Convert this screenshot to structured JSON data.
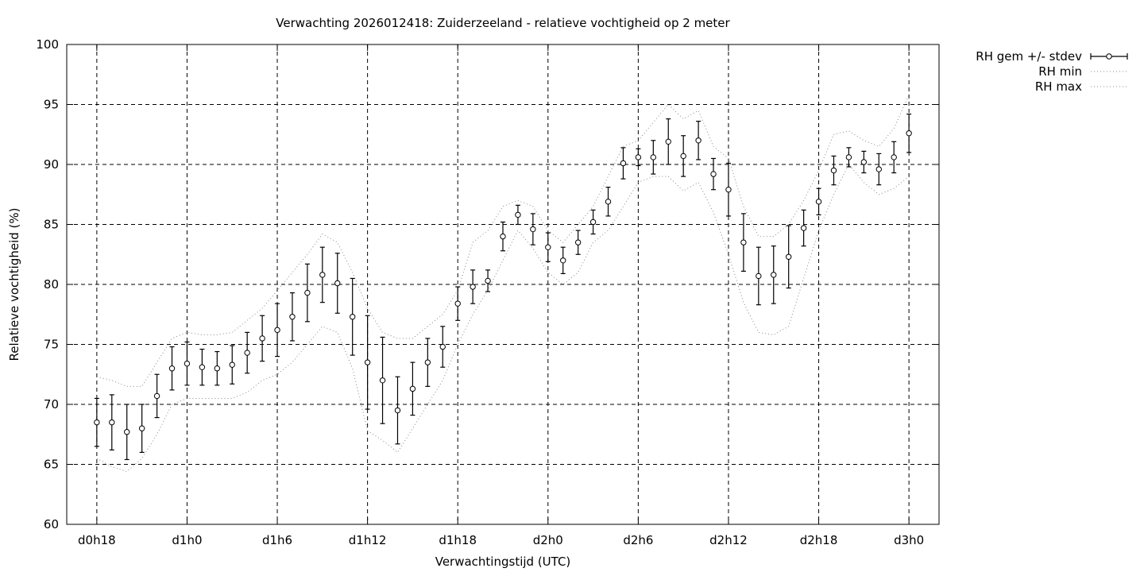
{
  "chart_data": {
    "type": "line",
    "title": "Verwachting 2026012418: Zuiderzeeland - relatieve vochtigheid op 2 meter",
    "xlabel": "Verwachtingstijd (UTC)",
    "ylabel": "Relatieve vochtigheid (%)",
    "ylim": [
      60,
      100
    ],
    "xlim": [
      -2,
      56
    ],
    "x_ticks": [
      {
        "x": 0,
        "label": "d0h18"
      },
      {
        "x": 6,
        "label": "d1h0"
      },
      {
        "x": 12,
        "label": "d1h6"
      },
      {
        "x": 18,
        "label": "d1h12"
      },
      {
        "x": 24,
        "label": "d1h18"
      },
      {
        "x": 30,
        "label": "d2h0"
      },
      {
        "x": 36,
        "label": "d2h6"
      },
      {
        "x": 42,
        "label": "d2h12"
      },
      {
        "x": 48,
        "label": "d2h18"
      },
      {
        "x": 54,
        "label": "d3h0"
      }
    ],
    "y_ticks": [
      60,
      65,
      70,
      75,
      80,
      85,
      90,
      95,
      100
    ],
    "grid": true,
    "legend_position": "outside-top-right",
    "x": [
      0,
      1,
      2,
      3,
      4,
      5,
      6,
      7,
      8,
      9,
      10,
      11,
      12,
      13,
      14,
      15,
      16,
      17,
      18,
      19,
      20,
      21,
      22,
      23,
      24,
      25,
      26,
      27,
      28,
      29,
      30,
      31,
      32,
      33,
      34,
      35,
      36,
      37,
      38,
      39,
      40,
      41,
      42,
      43,
      44,
      45,
      46,
      47,
      48,
      49,
      50,
      51,
      52,
      53,
      54
    ],
    "series": [
      {
        "name": "RH gem +/- stdev",
        "style": "errorbars",
        "values": [
          68.5,
          68.5,
          67.7,
          68.0,
          70.7,
          73.0,
          73.4,
          73.1,
          73.0,
          73.3,
          74.3,
          75.5,
          76.2,
          77.3,
          79.3,
          80.8,
          80.1,
          77.3,
          73.5,
          72.0,
          69.5,
          71.3,
          73.5,
          74.8,
          78.4,
          79.8,
          80.3,
          84.0,
          85.8,
          84.6,
          83.1,
          82.0,
          83.5,
          85.2,
          86.9,
          90.1,
          90.6,
          90.6,
          91.9,
          90.7,
          92.0,
          89.2,
          87.9,
          83.5,
          80.7,
          80.8,
          82.3,
          84.7,
          86.9,
          89.5,
          90.6,
          90.2,
          89.6,
          90.6,
          92.6
        ],
        "stdev": [
          2.0,
          2.3,
          2.3,
          2.0,
          1.8,
          1.8,
          1.8,
          1.5,
          1.4,
          1.6,
          1.7,
          1.9,
          2.2,
          2.0,
          2.4,
          2.3,
          2.5,
          3.2,
          3.9,
          3.6,
          2.8,
          2.2,
          2.0,
          1.7,
          1.4,
          1.4,
          0.9,
          1.2,
          0.8,
          1.3,
          1.2,
          1.1,
          1.0,
          1.0,
          1.2,
          1.3,
          0.7,
          1.4,
          1.9,
          1.7,
          1.6,
          1.3,
          2.2,
          2.4,
          2.4,
          2.4,
          2.6,
          1.5,
          1.1,
          1.2,
          0.8,
          0.9,
          1.3,
          1.3,
          1.6
        ]
      },
      {
        "name": "RH min",
        "style": "dotted",
        "values": [
          65.5,
          64.8,
          64.4,
          65.5,
          67.5,
          70.0,
          70.5,
          70.5,
          70.5,
          70.5,
          71.0,
          72.0,
          72.5,
          73.5,
          75.0,
          76.5,
          76.0,
          73.0,
          67.8,
          67.0,
          66.0,
          68.0,
          70.0,
          72.0,
          75.0,
          77.5,
          79.5,
          82.0,
          84.5,
          83.0,
          81.0,
          80.0,
          81.0,
          83.5,
          84.5,
          86.5,
          88.5,
          89.0,
          89.0,
          87.8,
          88.5,
          86.0,
          82.5,
          78.5,
          76.0,
          75.8,
          76.5,
          80.5,
          84.5,
          87.5,
          90.0,
          88.5,
          87.5,
          88.0,
          89.0
        ]
      },
      {
        "name": "RH max",
        "style": "dotted",
        "values": [
          72.3,
          72.0,
          71.5,
          71.5,
          73.5,
          75.5,
          76.0,
          75.8,
          75.8,
          76.0,
          77.0,
          78.0,
          79.5,
          81.0,
          82.5,
          84.2,
          83.5,
          81.0,
          78.0,
          76.0,
          75.5,
          75.5,
          76.5,
          77.5,
          79.5,
          83.5,
          84.5,
          86.5,
          87.0,
          86.5,
          84.5,
          83.5,
          85.0,
          86.5,
          89.0,
          91.5,
          92.0,
          93.5,
          95.0,
          93.8,
          94.5,
          91.5,
          90.5,
          86.5,
          84.0,
          84.0,
          85.0,
          87.0,
          89.5,
          92.5,
          92.8,
          92.0,
          91.5,
          93.0,
          95.8
        ]
      }
    ]
  }
}
